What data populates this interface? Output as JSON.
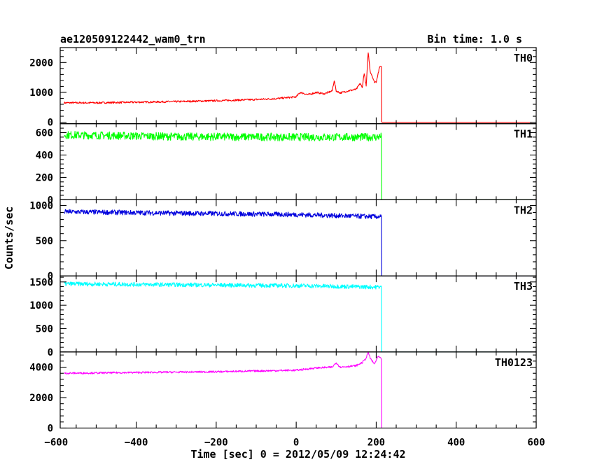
{
  "chart_data": {
    "type": "line",
    "title": "ae120509122442_wam0_trn",
    "subtitle": "Bin time: 1.0 s",
    "xlabel": "Time [sec] 0 = 2012/05/09 12:24:42",
    "ylabel": "Counts/sec",
    "xlim": [
      -590,
      600
    ],
    "x_ticks": [
      "−600",
      "−400",
      "−200",
      "0",
      "200",
      "400",
      "600"
    ],
    "x_tick_values": [
      -600,
      -400,
      -200,
      0,
      200,
      400,
      600
    ],
    "panels": [
      {
        "name": "TH0",
        "color": "#ff0000",
        "ylim": [
          -50,
          2500
        ],
        "y_ticks": [
          "0",
          "1000",
          "2000"
        ],
        "y_tick_values": [
          0,
          1000,
          2000
        ],
        "noise": 30,
        "x": [
          -580,
          -500,
          -400,
          -300,
          -200,
          -100,
          -50,
          0,
          10,
          30,
          50,
          70,
          90,
          95,
          100,
          110,
          130,
          150,
          160,
          165,
          170,
          175,
          180,
          185,
          190,
          195,
          200,
          205,
          210,
          213,
          214,
          590
        ],
        "y": [
          650,
          650,
          670,
          690,
          720,
          760,
          790,
          850,
          1000,
          920,
          1000,
          950,
          1050,
          1400,
          1050,
          980,
          1050,
          1100,
          1300,
          1150,
          1650,
          1200,
          2350,
          1700,
          1550,
          1350,
          1350,
          1650,
          1900,
          1850,
          0,
          0
        ]
      },
      {
        "name": "TH1",
        "color": "#00ff00",
        "ylim": [
          0,
          680
        ],
        "y_ticks": [
          "0",
          "200",
          "400",
          "600"
        ],
        "y_tick_values": [
          0,
          200,
          400,
          600
        ],
        "noise": 35,
        "x": [
          -580,
          -300,
          0,
          200,
          213,
          214,
          590
        ],
        "y": [
          580,
          565,
          560,
          560,
          565,
          0,
          0
        ]
      },
      {
        "name": "TH2",
        "color": "#0000dd",
        "ylim": [
          0,
          1080
        ],
        "y_ticks": [
          "0",
          "500",
          "1000"
        ],
        "y_tick_values": [
          0,
          500,
          1000
        ],
        "noise": 35,
        "x": [
          -580,
          -300,
          0,
          200,
          213,
          214,
          590
        ],
        "y": [
          910,
          890,
          870,
          840,
          840,
          0,
          0
        ]
      },
      {
        "name": "TH3",
        "color": "#00ffff",
        "ylim": [
          0,
          1630
        ],
        "y_ticks": [
          "0",
          "500",
          "1000",
          "1500"
        ],
        "y_tick_values": [
          0,
          500,
          1000,
          1500
        ],
        "noise": 45,
        "x": [
          -580,
          -300,
          0,
          200,
          213,
          214,
          590
        ],
        "y": [
          1460,
          1440,
          1420,
          1390,
          1400,
          0,
          0
        ]
      },
      {
        "name": "TH0123",
        "color": "#ff00ff",
        "ylim": [
          0,
          5000
        ],
        "y_ticks": [
          "0",
          "2000",
          "4000"
        ],
        "y_tick_values": [
          0,
          2000,
          4000
        ],
        "noise": 60,
        "x": [
          -580,
          -400,
          -200,
          0,
          50,
          90,
          100,
          110,
          150,
          165,
          175,
          180,
          185,
          195,
          205,
          210,
          213,
          214,
          590
        ],
        "y": [
          3600,
          3650,
          3700,
          3800,
          3950,
          4000,
          4300,
          4000,
          4100,
          4300,
          4600,
          5000,
          4600,
          4200,
          4700,
          4600,
          4500,
          0,
          0
        ]
      }
    ]
  }
}
